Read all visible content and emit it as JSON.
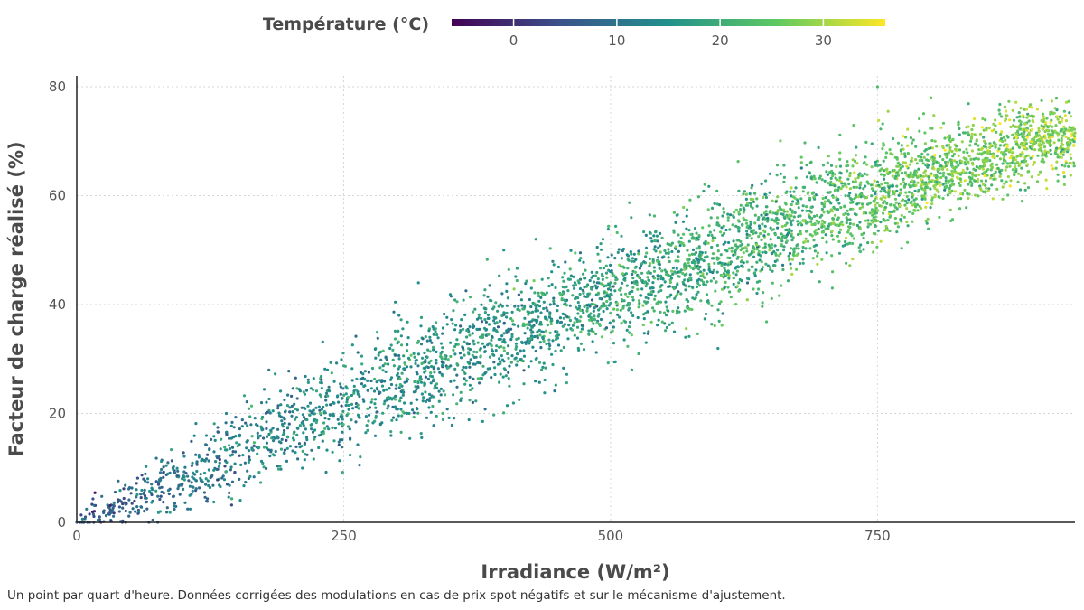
{
  "chart_data": {
    "type": "scatter",
    "title": "",
    "xlabel": "Irradiance (W/m²)",
    "ylabel": "Facteur de charge réalisé (%)",
    "xlim": [
      0,
      935
    ],
    "ylim": [
      0,
      82
    ],
    "xticks": [
      0,
      250,
      500,
      750
    ],
    "yticks": [
      0,
      20,
      40,
      60,
      80
    ],
    "grid": true,
    "colorbar": {
      "title": "Température (°C)",
      "colormap": "viridis",
      "range": [
        -6,
        36
      ],
      "ticks": [
        0,
        10,
        20,
        30
      ],
      "placement": "top-center"
    },
    "trend": {
      "x": [
        0,
        100,
        200,
        300,
        400,
        500,
        600,
        700,
        800,
        900
      ],
      "y": [
        0,
        8,
        18,
        26,
        34,
        42,
        49,
        57,
        64,
        70
      ],
      "spread_y": [
        1,
        4,
        5,
        6,
        6,
        6,
        6,
        6,
        5,
        4
      ],
      "temperature": [
        5,
        11,
        14,
        15,
        16,
        18,
        20,
        23,
        26,
        28
      ]
    },
    "points": [
      [
        0,
        0,
        5
      ],
      [
        5,
        0,
        8
      ],
      [
        8,
        1,
        6
      ],
      [
        10,
        0,
        9
      ],
      [
        3,
        0,
        4
      ],
      [
        12,
        0,
        10
      ],
      [
        25,
        2,
        7
      ],
      [
        35,
        3,
        8
      ],
      [
        40,
        2,
        9
      ],
      [
        70,
        7,
        10
      ],
      [
        90,
        10,
        11
      ],
      [
        110,
        8,
        12
      ],
      [
        140,
        20,
        13
      ],
      [
        160,
        15,
        13
      ],
      [
        180,
        28,
        12
      ],
      [
        200,
        14,
        14
      ],
      [
        220,
        18,
        15
      ],
      [
        240,
        22,
        15
      ],
      [
        260,
        25,
        16
      ],
      [
        300,
        27,
        15
      ],
      [
        320,
        44,
        15
      ],
      [
        350,
        33,
        16
      ],
      [
        400,
        50,
        16
      ],
      [
        430,
        52,
        17
      ],
      [
        450,
        35,
        18
      ],
      [
        480,
        38,
        18
      ],
      [
        500,
        44,
        19
      ],
      [
        520,
        28,
        18
      ],
      [
        540,
        48,
        19
      ],
      [
        560,
        46,
        20
      ],
      [
        600,
        55,
        20
      ],
      [
        620,
        44,
        21
      ],
      [
        650,
        52,
        21
      ],
      [
        700,
        58,
        22
      ],
      [
        720,
        62,
        24
      ],
      [
        750,
        80,
        23
      ],
      [
        760,
        64,
        25
      ],
      [
        800,
        78,
        26
      ],
      [
        820,
        62,
        27
      ],
      [
        850,
        70,
        29
      ],
      [
        870,
        74,
        30
      ],
      [
        890,
        72,
        33
      ],
      [
        910,
        68,
        31
      ],
      [
        930,
        66,
        28
      ],
      [
        905,
        75,
        26
      ]
    ],
    "sample_count": 4200
  },
  "caption": "Un point par quart d'heure. Données corrigées des modulations en cas de prix spot négatifs et sur le mécanisme d'ajustement."
}
